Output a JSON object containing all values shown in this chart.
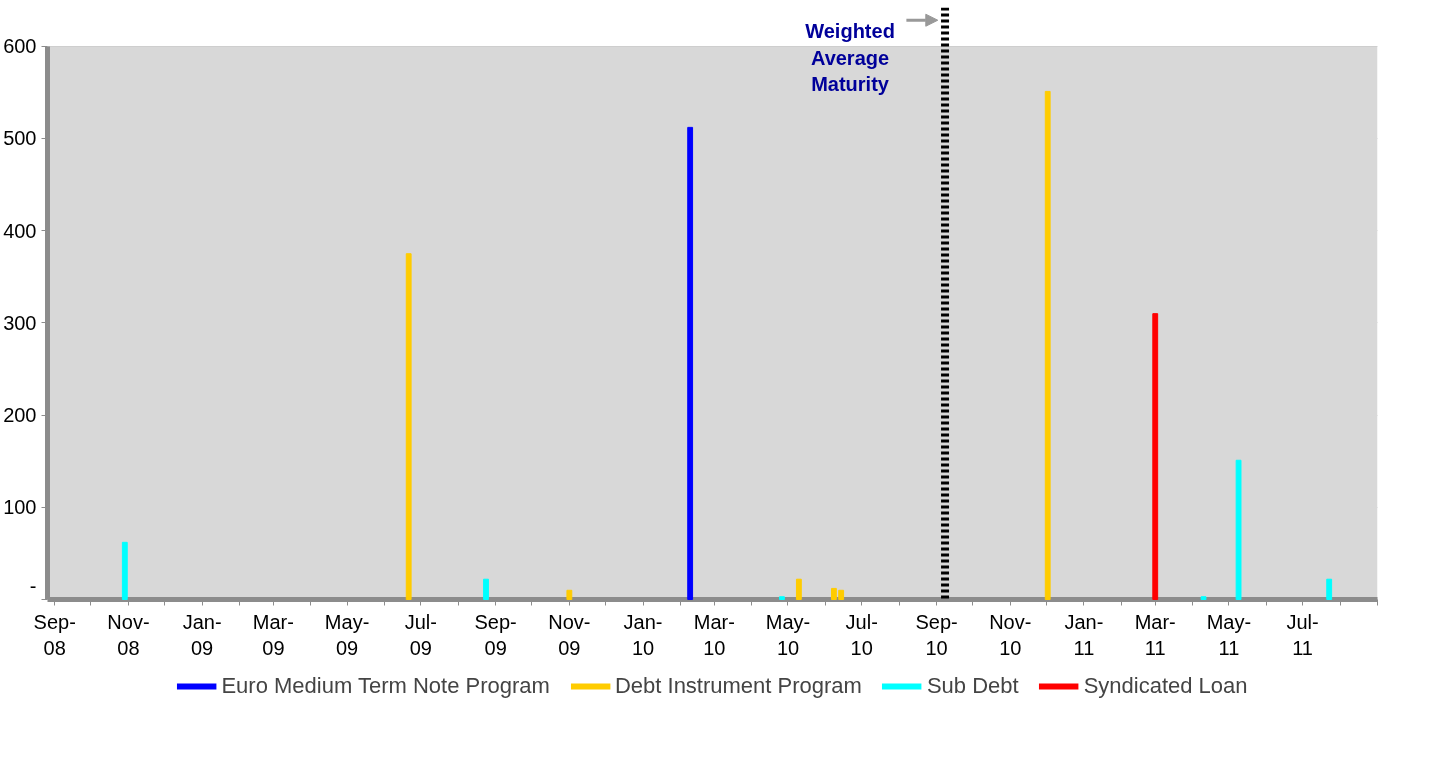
{
  "chart_data": {
    "type": "bar",
    "series": [
      {
        "name": "Euro Medium Term Note Program",
        "color": "#0000ff",
        "x": [
          "2010-02-09"
        ],
        "values": [
          512
        ]
      },
      {
        "name": "Debt Instrument Program",
        "color": "#ffcc00",
        "x": [
          "2009-06-21",
          "2009-11-01",
          "2010-05-10",
          "2010-06-08",
          "2010-06-14",
          "2010-12-02"
        ],
        "values": [
          375,
          10,
          22,
          12,
          10,
          551
        ]
      },
      {
        "name": "Sub Debt",
        "color": "#00ffff",
        "x": [
          "2008-10-29",
          "2009-08-24",
          "2010-04-26",
          "2011-04-10",
          "2011-05-09",
          "2011-07-23"
        ],
        "values": [
          62,
          22,
          3,
          3,
          151,
          22
        ]
      },
      {
        "name": "Syndicated Loan",
        "color": "#ff0000",
        "x": [
          "2011-03-01"
        ],
        "values": [
          310
        ]
      }
    ],
    "xlim": [
      "2008-08-26",
      "2011-09-01"
    ],
    "xticks": [
      {
        "value": "2008-09-01",
        "label": "Sep-08"
      },
      {
        "value": "2008-10-01",
        "label": null
      },
      {
        "value": "2008-11-01",
        "label": "Nov-08"
      },
      {
        "value": "2008-12-01",
        "label": null
      },
      {
        "value": "2009-01-01",
        "label": "Jan-09"
      },
      {
        "value": "2009-02-01",
        "label": null
      },
      {
        "value": "2009-03-01",
        "label": "Mar-09"
      },
      {
        "value": "2009-04-01",
        "label": null
      },
      {
        "value": "2009-05-01",
        "label": "May-09"
      },
      {
        "value": "2009-06-01",
        "label": null
      },
      {
        "value": "2009-07-01",
        "label": "Jul-09"
      },
      {
        "value": "2009-08-01",
        "label": null
      },
      {
        "value": "2009-09-01",
        "label": "Sep-09"
      },
      {
        "value": "2009-10-01",
        "label": null
      },
      {
        "value": "2009-11-01",
        "label": "Nov-09"
      },
      {
        "value": "2009-12-01",
        "label": null
      },
      {
        "value": "2010-01-01",
        "label": "Jan-10"
      },
      {
        "value": "2010-02-01",
        "label": null
      },
      {
        "value": "2010-03-01",
        "label": "Mar-10"
      },
      {
        "value": "2010-04-01",
        "label": null
      },
      {
        "value": "2010-05-01",
        "label": "May-10"
      },
      {
        "value": "2010-06-01",
        "label": null
      },
      {
        "value": "2010-07-01",
        "label": "Jul-10"
      },
      {
        "value": "2010-08-01",
        "label": null
      },
      {
        "value": "2010-09-01",
        "label": "Sep-10"
      },
      {
        "value": "2010-10-01",
        "label": null
      },
      {
        "value": "2010-11-01",
        "label": "Nov-10"
      },
      {
        "value": "2010-12-01",
        "label": null
      },
      {
        "value": "2011-01-01",
        "label": "Jan-11"
      },
      {
        "value": "2011-02-01",
        "label": null
      },
      {
        "value": "2011-03-01",
        "label": "Mar-11"
      },
      {
        "value": "2011-04-01",
        "label": null
      },
      {
        "value": "2011-05-01",
        "label": "May-11"
      },
      {
        "value": "2011-06-01",
        "label": null
      },
      {
        "value": "2011-07-01",
        "label": "Jul-11"
      },
      {
        "value": "2011-08-01",
        "label": null
      },
      {
        "value": "2011-09-01",
        "label": null
      }
    ],
    "ylim": [
      0,
      600
    ],
    "yticks": [
      {
        "value": 0,
        "label": "-"
      },
      100,
      200,
      300,
      400,
      500,
      600
    ],
    "ref_lines": [
      {
        "axis": "x",
        "value": "2010-09-08",
        "label": "Weighted Average Maturity",
        "color": "#000000",
        "line_style": "dotted"
      }
    ],
    "grid": "y",
    "legend": "bottom"
  }
}
